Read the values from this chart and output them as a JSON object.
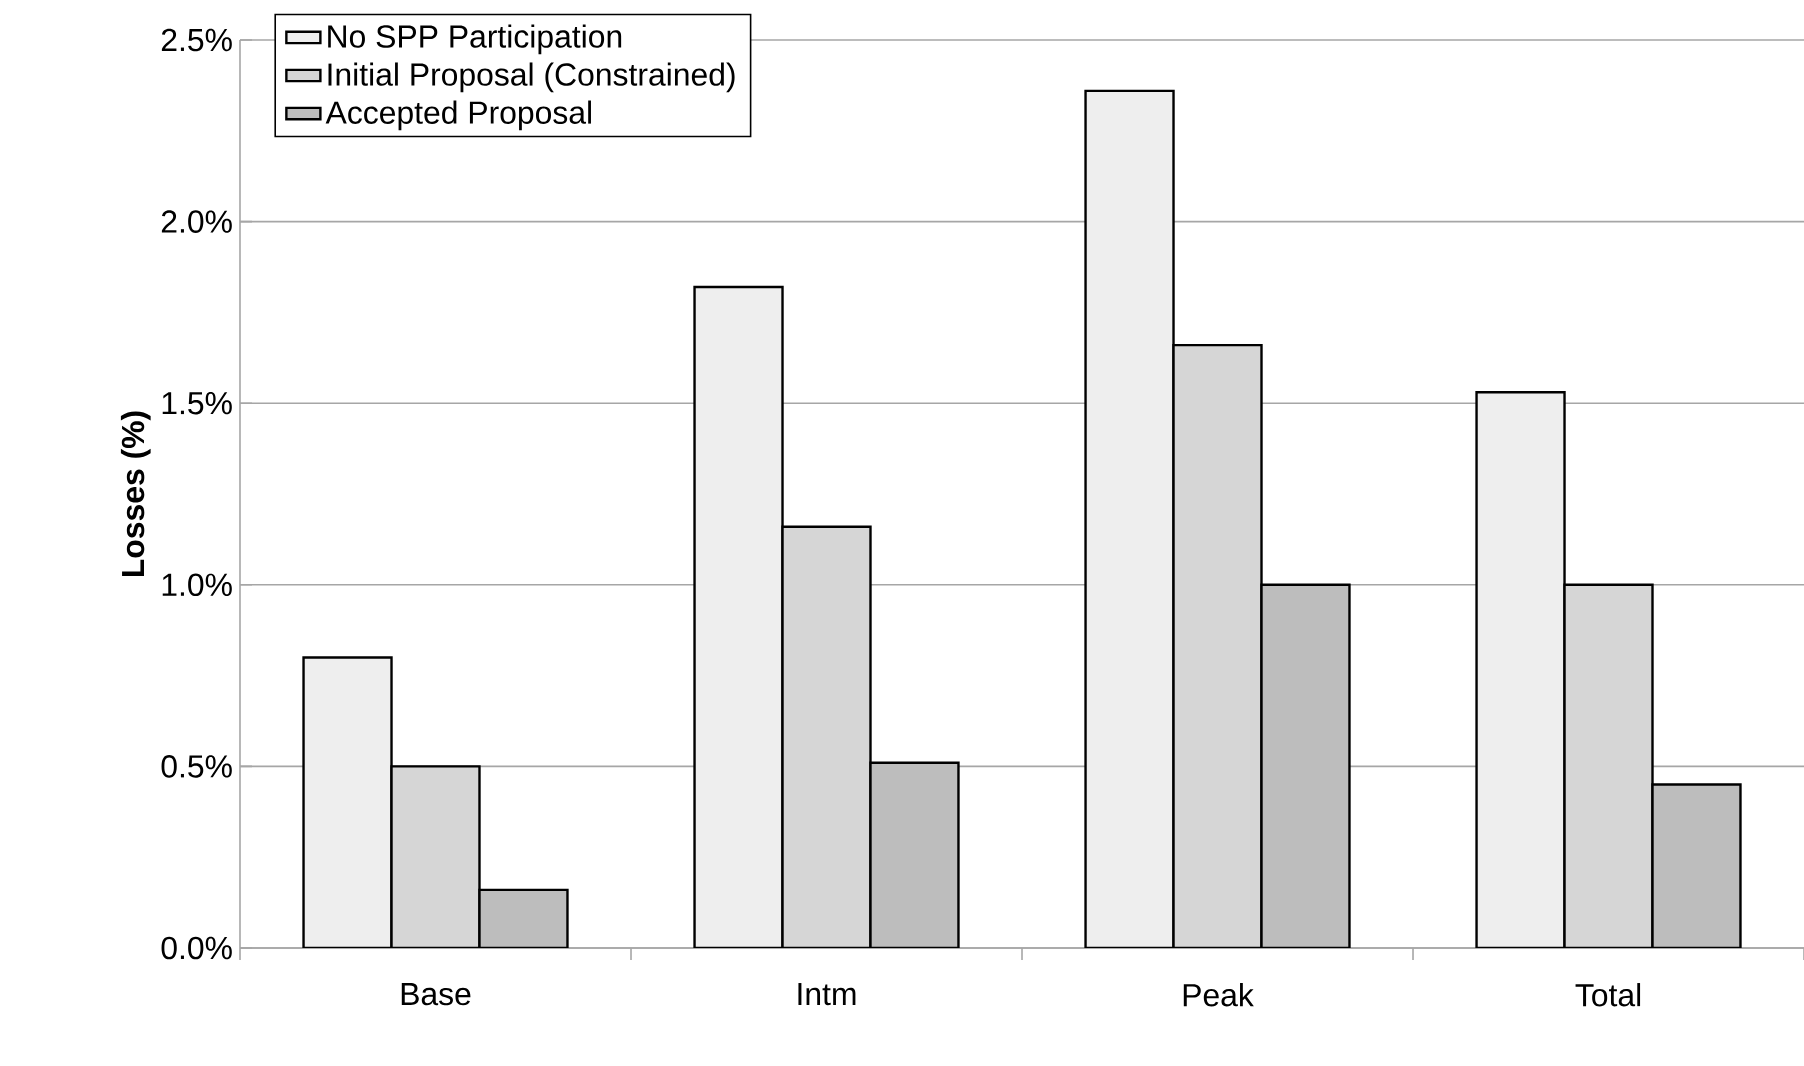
{
  "chart_data": {
    "type": "bar",
    "ylabel": "Losses (%)",
    "categories": [
      "Base",
      "Intm",
      "Peak",
      "Total"
    ],
    "series": [
      {
        "name": "No SPP Participation",
        "color": "#eeeeee",
        "values": [
          0.8,
          1.82,
          2.36,
          1.53
        ]
      },
      {
        "name": "Initial Proposal (Constrained)",
        "color": "#d6d6d6",
        "values": [
          0.5,
          1.16,
          1.66,
          1.0
        ]
      },
      {
        "name": "Accepted Proposal",
        "color": "#bdbdbd",
        "values": [
          0.16,
          0.51,
          1.0,
          0.45
        ]
      }
    ],
    "ylim": [
      0,
      2.5
    ],
    "yticks": [
      {
        "value": 0,
        "label": "0.0%"
      },
      {
        "value": 0.5,
        "label": "0.5%"
      },
      {
        "value": 1.0,
        "label": "1.0%"
      },
      {
        "value": 1.5,
        "label": "1.5%"
      },
      {
        "value": 2.0,
        "label": "2.0%"
      },
      {
        "value": 2.5,
        "label": "2.5%"
      }
    ],
    "grid": "y",
    "legend": "top left"
  }
}
